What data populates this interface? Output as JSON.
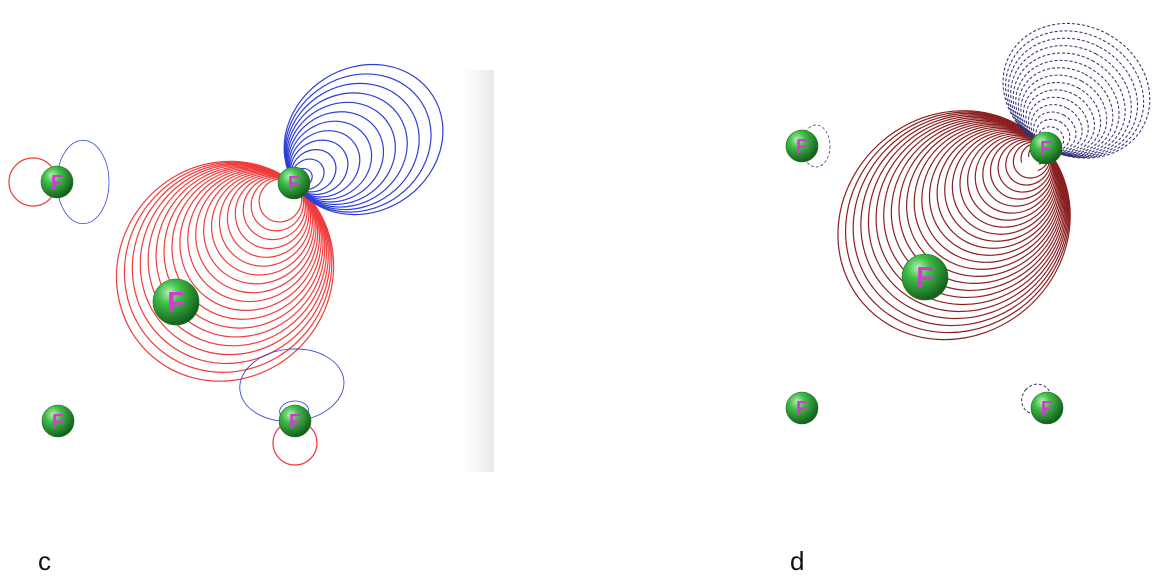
{
  "panels": [
    {
      "id": "c",
      "label": "c",
      "atom_symbol": "F",
      "colors": {
        "positive": "#f03c3c",
        "negative": "#2d3ed8",
        "atom": "#2ea83a"
      }
    },
    {
      "id": "d",
      "label": "d",
      "atom_symbol": "F",
      "colors": {
        "positive": "#8b2020",
        "negative": "#33337a",
        "atom": "#2ea83a"
      }
    }
  ]
}
